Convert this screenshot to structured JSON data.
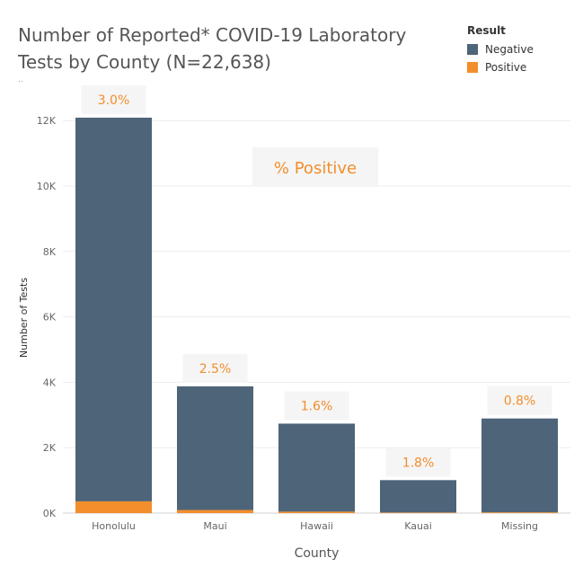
{
  "title": "Number of Reported* COVID-19 Laboratory Tests by County (N=22,638)",
  "footnote": "..",
  "legend": {
    "title": "Result",
    "items": [
      {
        "label": "Negative",
        "color": "#4e6479"
      },
      {
        "label": "Positive",
        "color": "#f28e2b"
      }
    ]
  },
  "annotation": "% Positive",
  "chart_data": {
    "type": "bar",
    "stacked": true,
    "categories": [
      "Honolulu",
      "Maui",
      "Hawaii",
      "Kauai",
      "Missing"
    ],
    "series": [
      {
        "name": "Negative",
        "color": "#4e6479",
        "values": [
          11730,
          3780,
          2690,
          990,
          2870
        ]
      },
      {
        "name": "Positive",
        "color": "#f28e2b",
        "values": [
          360,
          95,
          45,
          18,
          23
        ]
      }
    ],
    "data_labels": [
      "3.0%",
      "2.5%",
      "1.6%",
      "1.8%",
      "0.8%"
    ],
    "xlabel": "County",
    "ylabel": "Number of Tests",
    "ylim": [
      0,
      12500
    ],
    "yticks": [
      0,
      2000,
      4000,
      6000,
      8000,
      10000,
      12000
    ],
    "ytick_labels": [
      "0K",
      "2K",
      "4K",
      "6K",
      "8K",
      "10K",
      "12K"
    ],
    "grid": true,
    "legend_position": "top-right"
  }
}
